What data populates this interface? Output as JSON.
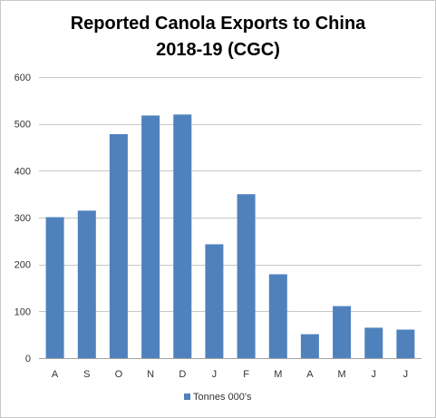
{
  "chart_data": {
    "type": "bar",
    "title_line1": "Reported Canola Exports to China",
    "title_line2": "2018-19 (CGC)",
    "xlabel": "",
    "ylabel": "",
    "ylim": [
      0,
      600
    ],
    "yticks": [
      0,
      100,
      200,
      300,
      400,
      500,
      600
    ],
    "grid": true,
    "legend_position": "bottom",
    "categories": [
      "A",
      "S",
      "O",
      "N",
      "D",
      "J",
      "F",
      "M",
      "A",
      "M",
      "J",
      "J"
    ],
    "series": [
      {
        "name": "Tonnes 000's",
        "color": "#4f81bd",
        "values": [
          301,
          315,
          478,
          518,
          520,
          243,
          350,
          179,
          51,
          111,
          65,
          61
        ]
      }
    ]
  }
}
